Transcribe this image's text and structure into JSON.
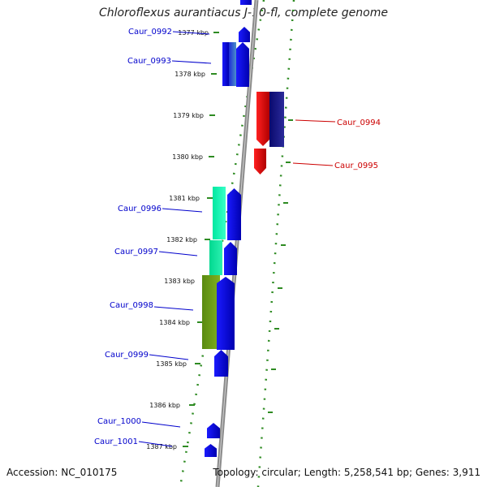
{
  "title": "Chloroflexus aurantiacus J-10-fl, complete genome",
  "footer": {
    "accession": "Accession: NC_010175",
    "topology": "Topology: circular; Length: 5,258,541 bp; Genes: 3,911"
  },
  "colors": {
    "backbone": "#8a8a8a",
    "tick_marks": "#2e8b22",
    "forward_label": "#0000cc",
    "reverse_label": "#cc0000"
  },
  "kbp_ticks": [
    "1377 kbp",
    "1378 kbp",
    "1379 kbp",
    "1380 kbp",
    "1381 kbp",
    "1382 kbp",
    "1383 kbp",
    "1384 kbp",
    "1385 kbp",
    "1386 kbp",
    "1387 kbp"
  ],
  "genes": [
    {
      "id": "Caur_0992",
      "strand": "+"
    },
    {
      "id": "Caur_0993",
      "strand": "+"
    },
    {
      "id": "Caur_0994",
      "strand": "-"
    },
    {
      "id": "Caur_0995",
      "strand": "-"
    },
    {
      "id": "Caur_0996",
      "strand": "+"
    },
    {
      "id": "Caur_0997",
      "strand": "+"
    },
    {
      "id": "Caur_0998",
      "strand": "+"
    },
    {
      "id": "Caur_0999",
      "strand": "+"
    },
    {
      "id": "Caur_1000",
      "strand": "+"
    },
    {
      "id": "Caur_1001",
      "strand": "+"
    }
  ]
}
